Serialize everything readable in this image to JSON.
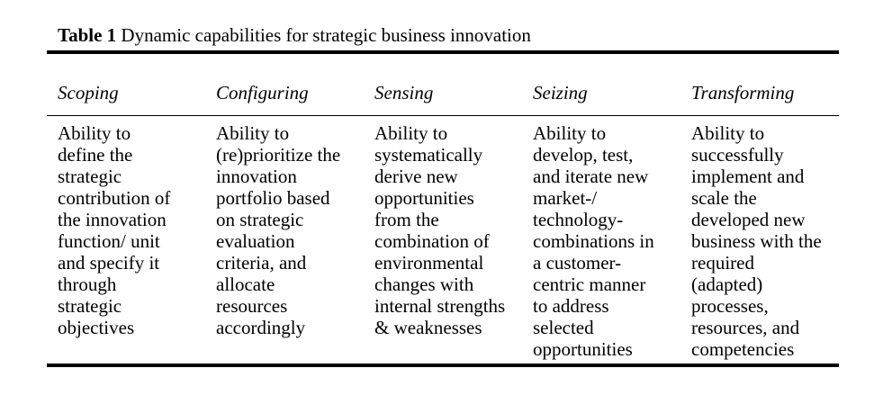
{
  "caption": {
    "label": "Table 1",
    "title": "Dynamic capabilities for strategic business innovation"
  },
  "table": {
    "headers": [
      "Scoping",
      "Configuring",
      "Sensing",
      "Seizing",
      "Transforming"
    ],
    "cells": [
      [
        "Ability to",
        "define the",
        "strategic",
        "contribution of",
        "the innovation",
        "function/ unit",
        "and specify it",
        "through",
        "strategic",
        "objectives"
      ],
      [
        "Ability to",
        "(re)prioritize the",
        "innovation",
        "portfolio based",
        "on strategic",
        "evaluation",
        "criteria, and",
        "allocate",
        "resources",
        "accordingly"
      ],
      [
        "Ability to",
        "systematically",
        "derive new",
        "opportunities",
        "from the",
        "combination of",
        "environmental",
        "changes with",
        "internal strengths",
        "& weaknesses"
      ],
      [
        "Ability to",
        "develop, test,",
        "and iterate new",
        "market-/",
        "technology-",
        "combinations in",
        "a customer-",
        "centric manner",
        "to address",
        "selected",
        "opportunities"
      ],
      [
        "Ability to",
        "successfully",
        "implement and",
        "scale the",
        "developed new",
        "business with the",
        "required",
        "(adapted)",
        "processes,",
        "resources, and",
        "competencies"
      ]
    ]
  }
}
